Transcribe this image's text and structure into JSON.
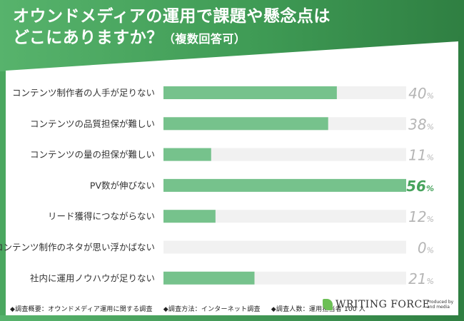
{
  "header": {
    "title_line1": "オウンドメディアの運用で課題や懸念点は",
    "title_line2": "どこにありますか？",
    "title_note": "（複数回答可）"
  },
  "chart_data": {
    "type": "bar",
    "orientation": "horizontal",
    "categories": [
      "コンテンツ制作者の人手が足りない",
      "コンテンツの品質担保が難しい",
      "コンテンツの量の担保が難しい",
      "PV数が伸びない",
      "リード獲得につながらない",
      "コンテンツ制作のネタが思い浮かばない",
      "社内に運用ノウハウが足りない"
    ],
    "values": [
      40,
      38,
      11,
      56,
      12,
      0,
      21
    ],
    "value_unit": "%",
    "xlim": [
      0,
      56
    ],
    "highlight_index": 3,
    "colors": {
      "bar": "#76c28c",
      "track": "#f1f1f1",
      "value": "#b5b5b5",
      "highlight_value": "#47a35c"
    },
    "grid": false,
    "legend": "none"
  },
  "footer": {
    "survey_summary": "◆調査概要：オウンドメディア運用に関する調査",
    "survey_method": "◆調査方法：インターネット調査",
    "respondents": "◆調査人数：運用担当者 100 人"
  },
  "brand": {
    "logo_text": "WRITING FORCE",
    "produced_by": "Produced by",
    "producer": "and media"
  }
}
